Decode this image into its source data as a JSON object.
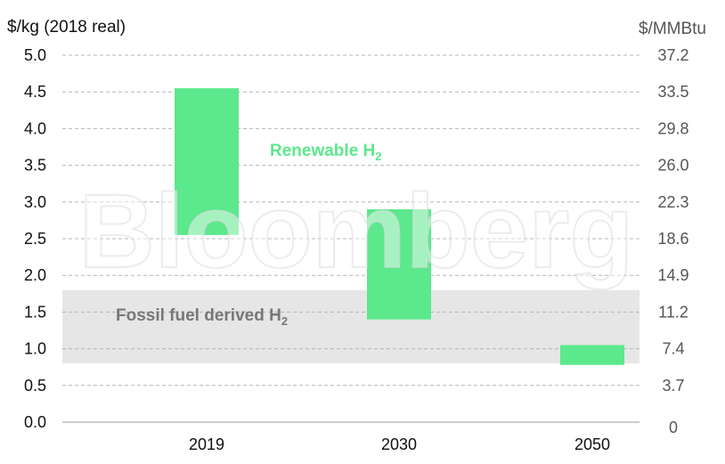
{
  "chart_data": {
    "type": "bar",
    "subtype": "floating-range",
    "y_left_label": "$/kg (2018 real)",
    "y_right_label": "$/MMBtu",
    "ylim": [
      0,
      5.0
    ],
    "y_left_ticks": [
      "0.0",
      "0.5",
      "1.0",
      "1.5",
      "2.0",
      "2.5",
      "3.0",
      "3.5",
      "4.0",
      "4.5",
      "5.0"
    ],
    "y_right_ticks": [
      "0",
      "3.7",
      "7.4",
      "11.2",
      "14.9",
      "18.6",
      "22.3",
      "26.0",
      "29.8",
      "33.5",
      "37.2"
    ],
    "categories": [
      "2019",
      "2030",
      "2050"
    ],
    "series": [
      {
        "name": "Renewable H2",
        "color": "#5ce88c",
        "ranges": [
          [
            2.55,
            4.55
          ],
          [
            1.4,
            2.9
          ],
          [
            0.78,
            1.05
          ]
        ]
      }
    ],
    "bands": [
      {
        "name": "Fossil fuel derived H2",
        "range": [
          0.8,
          1.8
        ],
        "color": "#e6e6e6"
      }
    ],
    "annotations": {
      "renewable": {
        "text": "Renewable H",
        "sub": "2",
        "color": "#5ce88c"
      },
      "fossil": {
        "text": "Fossil fuel derived H",
        "sub": "2",
        "color": "#777777"
      }
    },
    "gridlines": "dashed",
    "watermark": "Bloomberg"
  }
}
